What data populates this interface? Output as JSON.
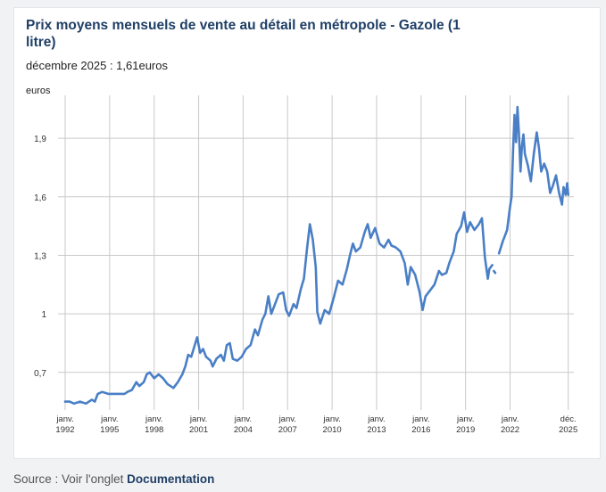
{
  "source": {
    "prefix": "Source : Voir l'onglet",
    "link_label": "Documentation"
  },
  "chart_data": {
    "type": "line",
    "title": "Prix moyens mensuels de vente au détail en métropole - Gazole (1 litre)",
    "subtitle": "décembre 2025 : 1,61euros",
    "ylabel": "euros",
    "xlabel": "",
    "ylim": [
      0.53,
      2.12
    ],
    "xlim": [
      1992.0,
      2026.0
    ],
    "grid": true,
    "color": "#4a7fc6",
    "yticks": [
      {
        "value": 0.7,
        "label": "0,7"
      },
      {
        "value": 1.0,
        "label": "1"
      },
      {
        "value": 1.3,
        "label": "1,3"
      },
      {
        "value": 1.6,
        "label": "1,6"
      },
      {
        "value": 1.9,
        "label": "1,9"
      }
    ],
    "xticks": [
      {
        "value": 1992.0,
        "line1": "janv.",
        "line2": "1992"
      },
      {
        "value": 1995.0,
        "line1": "janv.",
        "line2": "1995"
      },
      {
        "value": 1998.0,
        "line1": "janv.",
        "line2": "1998"
      },
      {
        "value": 2001.0,
        "line1": "janv.",
        "line2": "2001"
      },
      {
        "value": 2004.0,
        "line1": "janv.",
        "line2": "2004"
      },
      {
        "value": 2007.0,
        "line1": "janv.",
        "line2": "2007"
      },
      {
        "value": 2010.0,
        "line1": "janv.",
        "line2": "2010"
      },
      {
        "value": 2013.0,
        "line1": "janv.",
        "line2": "2013"
      },
      {
        "value": 2016.0,
        "line1": "janv.",
        "line2": "2016"
      },
      {
        "value": 2019.0,
        "line1": "janv.",
        "line2": "2019"
      },
      {
        "value": 2022.0,
        "line1": "janv.",
        "line2": "2022"
      },
      {
        "value": 2025.92,
        "line1": "déc.",
        "line2": "2025"
      }
    ],
    "series": [
      {
        "name": "Gazole (1 litre)",
        "segments": [
          [
            [
              1992.0,
              0.55
            ],
            [
              1992.3,
              0.55
            ],
            [
              1992.6,
              0.54
            ],
            [
              1993.0,
              0.55
            ],
            [
              1993.4,
              0.54
            ],
            [
              1993.8,
              0.56
            ],
            [
              1994.0,
              0.55
            ],
            [
              1994.2,
              0.59
            ],
            [
              1994.5,
              0.6
            ],
            [
              1994.9,
              0.59
            ],
            [
              1995.3,
              0.59
            ],
            [
              1995.7,
              0.59
            ],
            [
              1996.0,
              0.59
            ],
            [
              1996.2,
              0.6
            ],
            [
              1996.5,
              0.61
            ],
            [
              1996.8,
              0.65
            ],
            [
              1997.0,
              0.63
            ],
            [
              1997.3,
              0.65
            ],
            [
              1997.5,
              0.69
            ],
            [
              1997.7,
              0.7
            ],
            [
              1998.0,
              0.67
            ],
            [
              1998.3,
              0.69
            ],
            [
              1998.6,
              0.67
            ],
            [
              1998.9,
              0.64
            ],
            [
              1999.1,
              0.63
            ],
            [
              1999.3,
              0.62
            ],
            [
              1999.6,
              0.65
            ],
            [
              1999.9,
              0.69
            ],
            [
              2000.1,
              0.73
            ],
            [
              2000.3,
              0.79
            ],
            [
              2000.5,
              0.78
            ],
            [
              2000.7,
              0.83
            ],
            [
              2000.9,
              0.88
            ],
            [
              2001.1,
              0.8
            ],
            [
              2001.3,
              0.82
            ],
            [
              2001.5,
              0.78
            ],
            [
              2001.8,
              0.76
            ],
            [
              2001.95,
              0.73
            ],
            [
              2002.2,
              0.77
            ],
            [
              2002.5,
              0.79
            ],
            [
              2002.7,
              0.76
            ],
            [
              2002.9,
              0.84
            ],
            [
              2003.1,
              0.85
            ],
            [
              2003.3,
              0.77
            ],
            [
              2003.6,
              0.76
            ],
            [
              2003.9,
              0.78
            ],
            [
              2004.2,
              0.82
            ],
            [
              2004.5,
              0.84
            ],
            [
              2004.8,
              0.92
            ],
            [
              2005.0,
              0.89
            ],
            [
              2005.3,
              0.97
            ],
            [
              2005.5,
              1.0
            ],
            [
              2005.7,
              1.09
            ],
            [
              2005.9,
              1.0
            ],
            [
              2006.1,
              1.04
            ],
            [
              2006.4,
              1.1
            ],
            [
              2006.7,
              1.11
            ],
            [
              2006.9,
              1.02
            ],
            [
              2007.1,
              0.99
            ],
            [
              2007.4,
              1.05
            ],
            [
              2007.6,
              1.03
            ],
            [
              2007.9,
              1.13
            ],
            [
              2008.1,
              1.18
            ],
            [
              2008.3,
              1.33
            ],
            [
              2008.5,
              1.46
            ],
            [
              2008.7,
              1.38
            ],
            [
              2008.9,
              1.24
            ],
            [
              2009.0,
              1.01
            ],
            [
              2009.2,
              0.95
            ],
            [
              2009.5,
              1.02
            ],
            [
              2009.8,
              1.0
            ],
            [
              2010.1,
              1.08
            ],
            [
              2010.4,
              1.17
            ],
            [
              2010.7,
              1.15
            ],
            [
              2011.0,
              1.23
            ],
            [
              2011.2,
              1.3
            ],
            [
              2011.4,
              1.36
            ],
            [
              2011.6,
              1.32
            ],
            [
              2011.9,
              1.34
            ],
            [
              2012.2,
              1.42
            ],
            [
              2012.4,
              1.46
            ],
            [
              2012.6,
              1.39
            ],
            [
              2012.9,
              1.44
            ],
            [
              2013.2,
              1.36
            ],
            [
              2013.5,
              1.34
            ],
            [
              2013.8,
              1.38
            ],
            [
              2014.0,
              1.35
            ],
            [
              2014.3,
              1.34
            ],
            [
              2014.6,
              1.32
            ],
            [
              2014.9,
              1.26
            ],
            [
              2015.1,
              1.15
            ],
            [
              2015.3,
              1.24
            ],
            [
              2015.6,
              1.2
            ],
            [
              2015.9,
              1.11
            ],
            [
              2016.1,
              1.02
            ],
            [
              2016.3,
              1.09
            ],
            [
              2016.6,
              1.12
            ],
            [
              2016.9,
              1.15
            ],
            [
              2017.2,
              1.22
            ],
            [
              2017.4,
              1.2
            ],
            [
              2017.7,
              1.21
            ],
            [
              2017.9,
              1.26
            ],
            [
              2018.2,
              1.32
            ],
            [
              2018.4,
              1.41
            ],
            [
              2018.7,
              1.45
            ],
            [
              2018.9,
              1.52
            ],
            [
              2019.1,
              1.42
            ],
            [
              2019.3,
              1.47
            ],
            [
              2019.6,
              1.43
            ],
            [
              2019.9,
              1.46
            ],
            [
              2020.1,
              1.49
            ],
            [
              2020.3,
              1.29
            ],
            [
              2020.5,
              1.18
            ],
            [
              2020.6,
              1.23
            ],
            [
              2020.8,
              1.25
            ]
          ],
          [
            [
              2020.9,
              1.22
            ],
            [
              2021.0,
              1.21
            ]
          ],
          [
            [
              2021.25,
              1.31
            ],
            [
              2021.5,
              1.37
            ],
            [
              2021.8,
              1.43
            ],
            [
              2022.0,
              1.55
            ],
            [
              2022.1,
              1.6
            ],
            [
              2022.2,
              1.84
            ],
            [
              2022.3,
              2.02
            ],
            [
              2022.4,
              1.88
            ],
            [
              2022.5,
              2.06
            ],
            [
              2022.6,
              1.92
            ],
            [
              2022.7,
              1.73
            ],
            [
              2022.8,
              1.86
            ],
            [
              2022.9,
              1.92
            ],
            [
              2023.0,
              1.82
            ],
            [
              2023.2,
              1.76
            ],
            [
              2023.4,
              1.68
            ],
            [
              2023.6,
              1.82
            ],
            [
              2023.8,
              1.93
            ],
            [
              2023.95,
              1.85
            ],
            [
              2024.1,
              1.73
            ],
            [
              2024.3,
              1.77
            ],
            [
              2024.5,
              1.73
            ],
            [
              2024.7,
              1.62
            ],
            [
              2024.9,
              1.66
            ],
            [
              2025.1,
              1.71
            ],
            [
              2025.3,
              1.62
            ],
            [
              2025.5,
              1.56
            ],
            [
              2025.6,
              1.65
            ],
            [
              2025.75,
              1.61
            ],
            [
              2025.85,
              1.67
            ],
            [
              2025.92,
              1.61
            ]
          ]
        ]
      }
    ]
  }
}
